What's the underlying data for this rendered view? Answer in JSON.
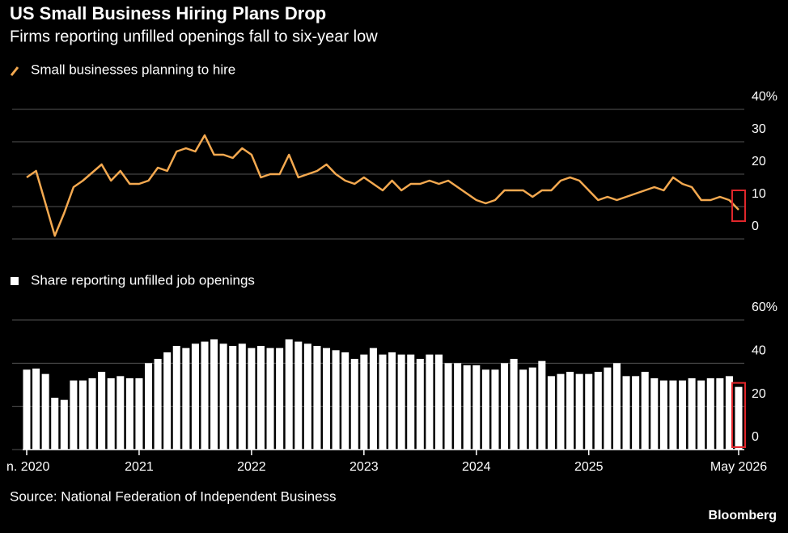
{
  "title": "US Small Business Hiring Plans Drop",
  "subtitle": "Firms reporting unfilled openings fall to six-year low",
  "source": "Source: National Federation of Independent Business",
  "credit": "Bloomberg",
  "chart_data": [
    {
      "type": "line",
      "series": [
        {
          "name": "Small businesses planning to hire",
          "color": "#f4a950",
          "values": [
            19,
            21,
            11,
            1,
            8,
            16,
            18,
            20.5,
            23,
            18,
            21,
            17,
            17,
            18,
            22,
            21,
            27,
            28,
            27,
            32,
            26,
            26,
            25,
            28,
            26,
            19,
            20,
            20,
            26,
            19,
            20,
            21,
            23,
            20,
            18,
            17,
            19,
            17,
            15,
            18,
            15,
            17,
            17,
            18,
            17,
            18,
            16,
            14,
            12,
            11,
            12,
            15,
            15,
            15,
            13,
            15,
            15,
            18,
            19,
            18,
            15,
            12,
            13,
            12,
            13,
            14,
            15,
            16,
            15,
            19,
            17,
            16,
            12,
            12,
            13,
            12,
            9
          ]
        }
      ],
      "ylim": [
        0,
        40
      ],
      "yticks": [
        0,
        10,
        20,
        30,
        {
          "value": 40,
          "label": "40%"
        }
      ],
      "grid": true
    },
    {
      "type": "bar",
      "series": [
        {
          "name": "Share reporting unfilled job openings",
          "color": "#ffffff",
          "values": [
            37,
            37.5,
            35,
            24,
            23,
            32,
            32,
            33,
            36,
            33,
            34,
            33,
            33,
            40,
            42,
            45,
            48,
            47,
            49,
            50,
            51,
            49,
            48,
            49,
            47,
            48,
            47,
            47,
            51,
            50,
            49,
            48,
            47,
            46,
            45,
            42,
            44,
            47,
            44,
            45,
            44,
            44,
            42,
            44,
            44,
            40,
            40,
            39,
            39,
            37,
            37,
            40,
            42,
            37,
            38,
            41,
            34,
            35,
            36,
            35,
            35,
            36,
            38,
            40,
            34,
            34,
            36,
            33,
            32,
            32,
            32,
            33,
            32,
            33,
            33,
            34,
            29
          ]
        }
      ],
      "ylim": [
        0,
        60
      ],
      "yticks": [
        0,
        20,
        40,
        {
          "value": 60,
          "label": "60%"
        }
      ],
      "xlim": [
        0,
        76
      ],
      "xticks": [
        {
          "value": 0,
          "label": "n. 2020"
        },
        {
          "value": 12,
          "label": "2021"
        },
        {
          "value": 24,
          "label": "2022"
        },
        {
          "value": 36,
          "label": "2023"
        },
        {
          "value": 48,
          "label": "2024"
        },
        {
          "value": 60,
          "label": "2025"
        },
        {
          "value": 76,
          "label": "May 2026"
        }
      ],
      "grid": true
    }
  ]
}
